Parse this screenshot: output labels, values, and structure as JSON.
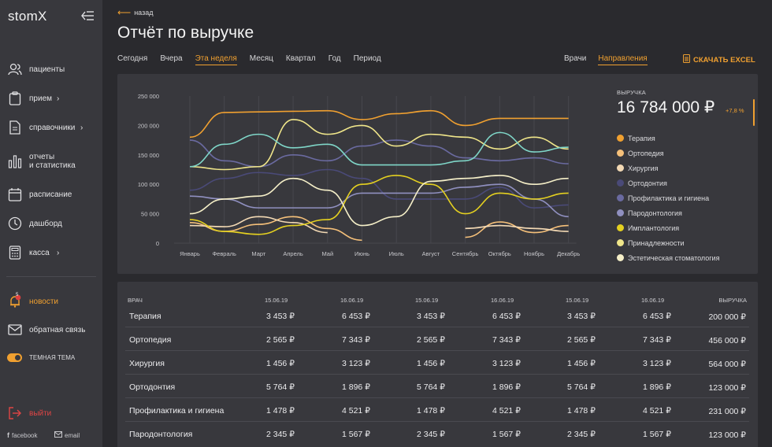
{
  "app": {
    "logo": "stomX"
  },
  "sidebar": {
    "items": [
      {
        "label": "пациенты",
        "icon": "patients-icon"
      },
      {
        "label": "прием",
        "icon": "clipboard-icon",
        "chevron": "›"
      },
      {
        "label": "справочники",
        "icon": "document-icon",
        "chevron": "›"
      },
      {
        "label": "отчеты\nи статистика",
        "icon": "bar-chart-icon"
      },
      {
        "label": "расписание",
        "icon": "calendar-icon"
      },
      {
        "label": "дашборд",
        "icon": "clock-icon"
      },
      {
        "label": "касса",
        "icon": "calculator-icon",
        "chevron": "›"
      }
    ],
    "news": {
      "label": "новости",
      "badge": "5",
      "icon": "bell-icon"
    },
    "feedback": {
      "label": "обратная связь",
      "icon": "mail-icon"
    },
    "theme": {
      "label": "ТЕМНАЯ ТЕМА"
    },
    "logout": {
      "label": "выйти",
      "icon": "logout-icon"
    },
    "facebook": "facebook",
    "email": "email"
  },
  "header": {
    "back": "назад",
    "title": "Отчёт по выручке",
    "period_tabs": [
      "Сегодня",
      "Вчера",
      "Эта неделя",
      "Месяц",
      "Квартал",
      "Год",
      "Период"
    ],
    "active_period": "Эта неделя",
    "view_tabs": [
      "Врачи",
      "Направления"
    ],
    "active_view": "Направления",
    "excel": "СКАЧАТЬ EXCEL"
  },
  "summary": {
    "label": "ВЫРУЧКА",
    "value": "16 784 000 ₽",
    "delta": "+7,8 %"
  },
  "colors": {
    "accent": "#f0a030",
    "panel": "#38383d",
    "background": "#2a2a2e"
  },
  "chart_data": {
    "type": "line",
    "categories": [
      "Январь",
      "Февраль",
      "Март",
      "Апрель",
      "Май",
      "Июнь",
      "Июль",
      "Август",
      "Сентябрь",
      "Октябрь",
      "Ноябрь",
      "Декабрь"
    ],
    "ylim": [
      0,
      250000
    ],
    "yticks": [
      "250 000",
      "200 000",
      "150 000",
      "100 000",
      "50 000",
      "0"
    ],
    "series": [
      {
        "name": "Терапия",
        "color": "#f0a030",
        "values": [
          180000,
          222000,
          223000,
          224000,
          225000,
          210000,
          220000,
          225000,
          200000,
          212000,
          212000,
          212000
        ]
      },
      {
        "name": "Ортопедия",
        "color": "#f5c07a",
        "values": [
          35000,
          20000,
          32000,
          45000,
          25000,
          5000,
          null,
          null,
          10000,
          36000,
          18000,
          30000
        ]
      },
      {
        "name": "Хирургия",
        "color": "#f3d9b4",
        "values": [
          30000,
          28000,
          45000,
          35000,
          18000,
          null,
          null,
          null,
          25000,
          30000,
          25000,
          20000
        ]
      },
      {
        "name": "Ортодонтия",
        "color": "#4a4a78",
        "values": [
          90000,
          110000,
          120000,
          115000,
          125000,
          110000,
          75000,
          75000,
          75000,
          95000,
          60000,
          65000
        ]
      },
      {
        "name": "Профилактика и гигиена",
        "color": "#6a6aa0",
        "values": [
          175000,
          140000,
          130000,
          150000,
          140000,
          165000,
          175000,
          165000,
          145000,
          140000,
          145000,
          135000
        ]
      },
      {
        "name": "Пародонтология",
        "color": "#9090c0",
        "values": [
          80000,
          75000,
          60000,
          60000,
          60000,
          85000,
          85000,
          85000,
          95000,
          100000,
          75000,
          45000
        ]
      },
      {
        "name": "Имплантология",
        "color": "#e4d020",
        "values": [
          40000,
          20000,
          15000,
          30000,
          40000,
          100000,
          115000,
          100000,
          50000,
          85000,
          75000,
          85000
        ]
      },
      {
        "name": "Принадлежности",
        "color": "#f0e68a",
        "values": [
          130000,
          125000,
          130000,
          210000,
          185000,
          200000,
          165000,
          185000,
          180000,
          160000,
          180000,
          160000
        ]
      },
      {
        "name": "Эстетическая стоматология",
        "color": "#f5efc8",
        "values": [
          50000,
          75000,
          80000,
          110000,
          90000,
          30000,
          45000,
          105000,
          110000,
          115000,
          100000,
          110000
        ]
      },
      {
        "name": "",
        "color": "#7fd6c8",
        "values": [
          130000,
          168000,
          185000,
          162000,
          168000,
          133000,
          133000,
          133000,
          140000,
          188000,
          155000,
          163000
        ]
      }
    ]
  },
  "table": {
    "headers": [
      "ВРАЧ",
      "15.06.19",
      "16.06.19",
      "15.06.19",
      "16.06.19",
      "15.06.19",
      "16.06.19",
      "ВЫРУЧКА"
    ],
    "rows": [
      [
        "Терапия",
        "3 453 ₽",
        "6 453 ₽",
        "3 453 ₽",
        "6 453 ₽",
        "3 453 ₽",
        "6 453 ₽",
        "200 000 ₽"
      ],
      [
        "Ортопедия",
        "2 565 ₽",
        "7 343 ₽",
        "2 565 ₽",
        "7 343 ₽",
        "2 565 ₽",
        "7 343 ₽",
        "456 000 ₽"
      ],
      [
        "Хирургия",
        "1 456 ₽",
        "3 123 ₽",
        "1 456 ₽",
        "3 123 ₽",
        "1 456 ₽",
        "3 123 ₽",
        "564 000 ₽"
      ],
      [
        "Ортодонтия",
        "5 764 ₽",
        "1 896 ₽",
        "5 764 ₽",
        "1 896 ₽",
        "5 764 ₽",
        "1 896 ₽",
        "123 000 ₽"
      ],
      [
        "Профилактика и гигиена",
        "1 478 ₽",
        "4 521 ₽",
        "1 478 ₽",
        "4 521 ₽",
        "1 478 ₽",
        "4 521 ₽",
        "231 000 ₽"
      ],
      [
        "Пародонтология",
        "2 345 ₽",
        "1 567 ₽",
        "2 345 ₽",
        "1 567 ₽",
        "2 345 ₽",
        "1 567 ₽",
        "123 000 ₽"
      ]
    ]
  }
}
